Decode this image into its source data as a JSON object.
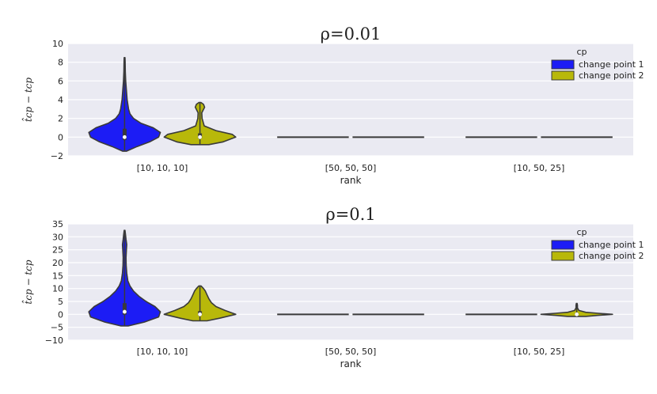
{
  "chart_data": [
    {
      "type": "violin",
      "title": "ρ=0.01",
      "xlabel": "rank",
      "ylabel": "t̂cp − tcp",
      "categories": [
        "[10, 10, 10]",
        "[50, 50, 50]",
        "[10, 50, 25]"
      ],
      "yticks": [
        "−2",
        "0",
        "2",
        "4",
        "6",
        "8",
        "10"
      ],
      "ylim": [
        -2,
        10
      ],
      "grid": true,
      "legend": {
        "title": "cp",
        "placement": "top-right",
        "entries": [
          "change point 1",
          "change point 2"
        ]
      },
      "series": [
        {
          "name": "change point 1",
          "color": "#1c1cf5",
          "violins": [
            {
              "category": "[10, 10, 10]",
              "min": -1.5,
              "max": 8.5,
              "median": 0,
              "profile": [
                [
                  -1.5,
                  0.05
                ],
                [
                  -1,
                  0.35
                ],
                [
                  -0.5,
                  0.7
                ],
                [
                  0,
                  0.95
                ],
                [
                  0.5,
                  1
                ],
                [
                  1,
                  0.8
                ],
                [
                  1.5,
                  0.45
                ],
                [
                  2,
                  0.25
                ],
                [
                  2.5,
                  0.15
                ],
                [
                  3,
                  0.11
                ],
                [
                  4,
                  0.07
                ],
                [
                  5,
                  0.05
                ],
                [
                  6,
                  0.03
                ],
                [
                  7,
                  0.02
                ],
                [
                  8,
                  0.015
                ],
                [
                  8.5,
                  0.01
                ]
              ]
            },
            {
              "category": "[50, 50, 50]",
              "min": 0,
              "max": 0,
              "median": 0,
              "profile": []
            },
            {
              "category": "[10, 50, 25]",
              "min": 0,
              "max": 0,
              "median": 0,
              "profile": []
            }
          ]
        },
        {
          "name": "change point 2",
          "color": "#b8b80a",
          "violins": [
            {
              "category": "[10, 10, 10]",
              "min": -0.8,
              "max": 3.7,
              "median": 0,
              "profile": [
                [
                  -0.8,
                  0.25
                ],
                [
                  -0.5,
                  0.65
                ],
                [
                  0,
                  1
                ],
                [
                  0.3,
                  0.9
                ],
                [
                  0.7,
                  0.45
                ],
                [
                  1.2,
                  0.12
                ],
                [
                  2,
                  0.06
                ],
                [
                  2.6,
                  0.05
                ],
                [
                  3.2,
                  0.13
                ],
                [
                  3.5,
                  0.1
                ],
                [
                  3.7,
                  0.03
                ]
              ]
            },
            {
              "category": "[50, 50, 50]",
              "min": 0,
              "max": 0,
              "median": 0,
              "profile": []
            },
            {
              "category": "[10, 50, 25]",
              "min": 0,
              "max": 0,
              "median": 0,
              "profile": []
            }
          ]
        }
      ]
    },
    {
      "type": "violin",
      "title": "ρ=0.1",
      "xlabel": "rank",
      "ylabel": "t̂cp − tcp",
      "categories": [
        "[10, 10, 10]",
        "[50, 50, 50]",
        "[10, 50, 25]"
      ],
      "yticks": [
        "−10",
        "−5",
        "0",
        "5",
        "10",
        "15",
        "20",
        "25",
        "30",
        "35"
      ],
      "ylim": [
        -10,
        35
      ],
      "grid": true,
      "legend": {
        "title": "cp",
        "placement": "top-right",
        "entries": [
          "change point 1",
          "change point 2"
        ]
      },
      "series": [
        {
          "name": "change point 1",
          "color": "#1c1cf5",
          "violins": [
            {
              "category": "[10, 10, 10]",
              "min": -4.5,
              "max": 32.5,
              "median": 1,
              "profile": [
                [
                  -4.5,
                  0.1
                ],
                [
                  -3,
                  0.55
                ],
                [
                  -1,
                  0.95
                ],
                [
                  1,
                  1
                ],
                [
                  3,
                  0.85
                ],
                [
                  5,
                  0.6
                ],
                [
                  7,
                  0.4
                ],
                [
                  9,
                  0.25
                ],
                [
                  11,
                  0.15
                ],
                [
                  13,
                  0.09
                ],
                [
                  16,
                  0.06
                ],
                [
                  19,
                  0.045
                ],
                [
                  22,
                  0.04
                ],
                [
                  25,
                  0.05
                ],
                [
                  27,
                  0.06
                ],
                [
                  29,
                  0.04
                ],
                [
                  31,
                  0.025
                ],
                [
                  32.5,
                  0.01
                ]
              ]
            },
            {
              "category": "[50, 50, 50]",
              "min": 0,
              "max": 0,
              "median": 0,
              "profile": []
            },
            {
              "category": "[10, 50, 25]",
              "min": 0,
              "max": 0,
              "median": 0,
              "profile": []
            }
          ]
        },
        {
          "name": "change point 2",
          "color": "#b8b80a",
          "violins": [
            {
              "category": "[10, 10, 10]",
              "min": -2.5,
              "max": 11,
              "median": 0,
              "profile": [
                [
                  -2.5,
                  0.2
                ],
                [
                  -1.5,
                  0.55
                ],
                [
                  0,
                  1
                ],
                [
                  1.5,
                  0.7
                ],
                [
                  3,
                  0.45
                ],
                [
                  4.5,
                  0.32
                ],
                [
                  6,
                  0.25
                ],
                [
                  7.5,
                  0.2
                ],
                [
                  9,
                  0.15
                ],
                [
                  10,
                  0.1
                ],
                [
                  11,
                  0.03
                ]
              ]
            },
            {
              "category": "[50, 50, 50]",
              "min": 0,
              "max": 0,
              "median": 0,
              "profile": []
            },
            {
              "category": "[10, 50, 25]",
              "min": -0.8,
              "max": 4.2,
              "median": 0,
              "profile": [
                [
                  -0.8,
                  0.25
                ],
                [
                  -0.4,
                  0.6
                ],
                [
                  0,
                  1
                ],
                [
                  0.4,
                  0.6
                ],
                [
                  0.8,
                  0.25
                ],
                [
                  1.5,
                  0.06
                ],
                [
                  2.5,
                  0.02
                ],
                [
                  3.5,
                  0.02
                ],
                [
                  4.2,
                  0.01
                ]
              ]
            }
          ]
        }
      ]
    }
  ]
}
